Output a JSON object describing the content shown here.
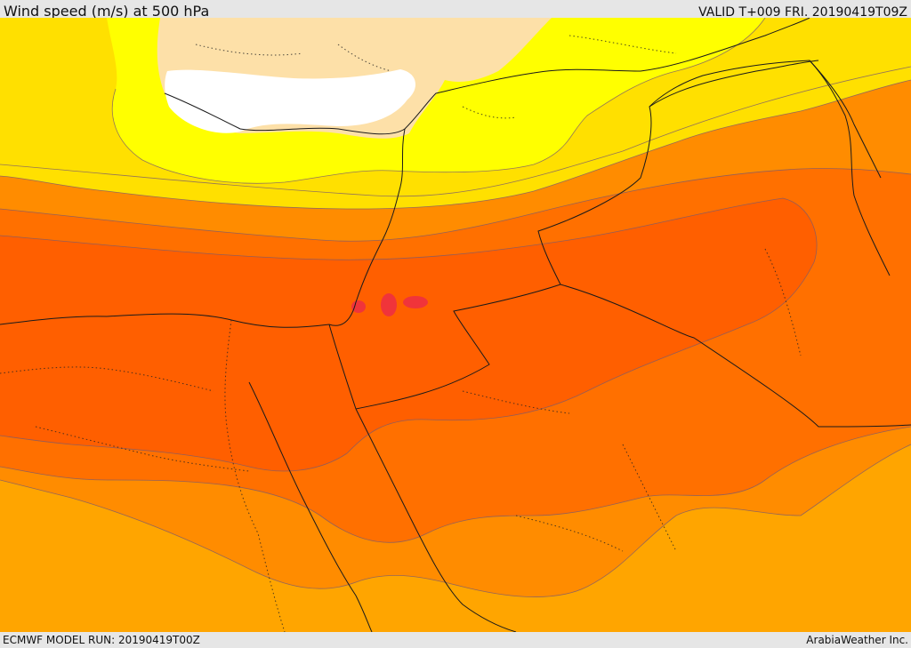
{
  "header": {
    "title": "Wind speed (m/s) at 500 hPa",
    "valid": "VALID T+009 FRI. 20190419T09Z"
  },
  "footer": {
    "model_run": "ECMWF MODEL RUN: 20190419T00Z",
    "credit": "ArabiaWeather Inc."
  },
  "map": {
    "variable": "wind speed",
    "level": "500 hPa",
    "units": "m/s",
    "palette": {
      "calm_white": "#ffffff",
      "very_low_peach": "#fde0a8",
      "low_yellow": "#ffff00",
      "light_gold": "#ffe000",
      "amber": "#ffa500",
      "orange": "#ff8c00",
      "dark_orange": "#ff7000",
      "red_orange": "#ff5f00",
      "jet_core_red": "#f0343a"
    }
  }
}
